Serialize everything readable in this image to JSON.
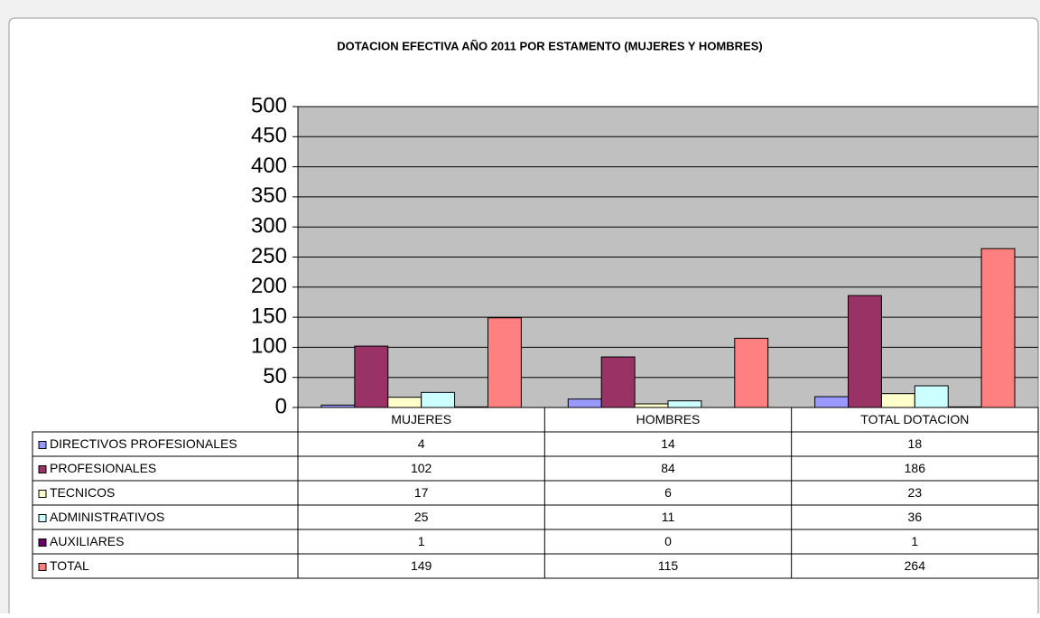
{
  "chart_data": {
    "type": "bar",
    "title": "DOTACION EFECTIVA AÑO 2011 POR ESTAMENTO (MUJERES Y HOMBRES)",
    "categories": [
      "MUJERES",
      "HOMBRES",
      "TOTAL DOTACION"
    ],
    "series": [
      {
        "name": "DIRECTIVOS PROFESIONALES",
        "color": "#9999ff",
        "values": [
          4,
          14,
          18
        ]
      },
      {
        "name": "PROFESIONALES",
        "color": "#993366",
        "values": [
          102,
          84,
          186
        ]
      },
      {
        "name": "TECNICOS",
        "color": "#ffffcc",
        "values": [
          17,
          6,
          23
        ]
      },
      {
        "name": "ADMINISTRATIVOS",
        "color": "#ccffff",
        "values": [
          25,
          11,
          36
        ]
      },
      {
        "name": "AUXILIARES",
        "color": "#660066",
        "values": [
          1,
          0,
          1
        ]
      },
      {
        "name": "TOTAL",
        "color": "#ff8080",
        "values": [
          149,
          115,
          264
        ]
      }
    ],
    "ylim": [
      0,
      500
    ],
    "yticks": [
      0,
      50,
      100,
      150,
      200,
      250,
      300,
      350,
      400,
      450,
      500
    ],
    "grid": true
  }
}
